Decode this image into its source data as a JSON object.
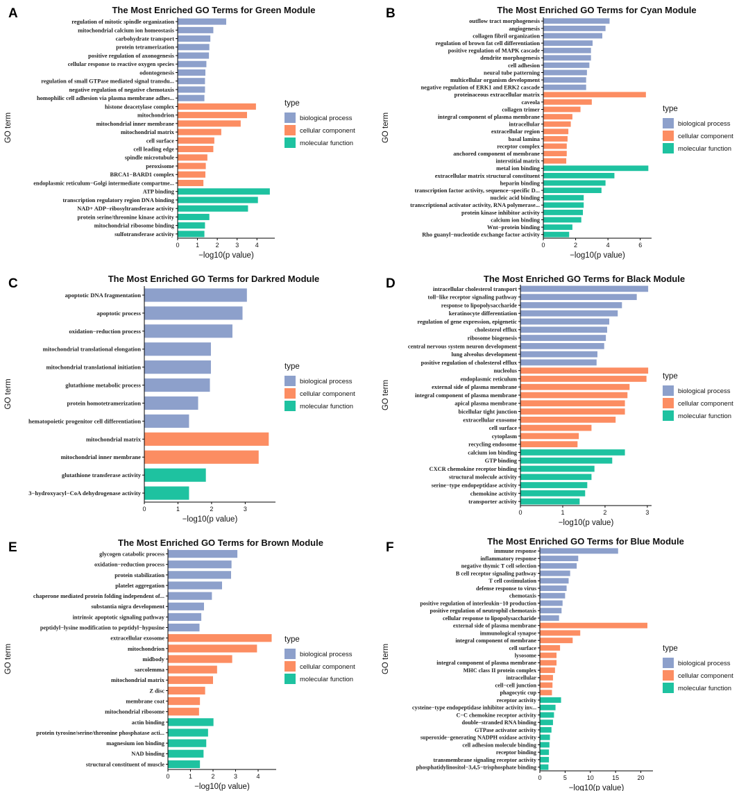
{
  "chart_data": [
    {
      "panel": "A",
      "type": "bar",
      "orientation": "horizontal",
      "title": "The Most Enriched GO Terms for Green Module",
      "xlabel": "−log10(p value)",
      "ylabel": "GO term",
      "xlim": [
        0,
        4.9
      ],
      "xticks": [
        "0",
        "1",
        "2",
        "3",
        "4"
      ],
      "legend_title": "type",
      "categories": [
        "regulation of mitotic spindle organization",
        "mitochondrial calcium ion homeostasis",
        "carbohydrate transport",
        "protein tetramerization",
        "positive regulation of axonogenesis",
        "cellular response to reactive oxygen species",
        "odontogenesis",
        "regulation of small GTPase mediated signal transdu...",
        "negative regulation of negative chemotaxis",
        "homophilic cell adhesion via plasma membrane adhes...",
        "histone deacetylase complex",
        "mitochondrion",
        "mitochondrial inner membrane",
        "mitochondrial matrix",
        "cell surface",
        "cell leading edge",
        "spindle microtubule",
        "peroxisome",
        "BRCA1−BARD1 complex",
        "endoplasmic reticulum−Golgi intermediate compartme...",
        "ATP binding",
        "transcription regulatory region DNA binding",
        "NAD+ ADP−ribosyltransferase activity",
        "protein serine/threonine kinase activity",
        "mitochondrial ribosome binding",
        "sulfotransferase activity"
      ],
      "values": [
        2.45,
        1.8,
        1.65,
        1.6,
        1.58,
        1.45,
        1.4,
        1.38,
        1.38,
        1.35,
        3.95,
        3.5,
        3.18,
        2.2,
        1.85,
        1.8,
        1.5,
        1.42,
        1.4,
        1.3,
        4.65,
        4.05,
        3.55,
        1.6,
        1.38,
        1.35
      ],
      "types": [
        "biological process",
        "biological process",
        "biological process",
        "biological process",
        "biological process",
        "biological process",
        "biological process",
        "biological process",
        "biological process",
        "biological process",
        "cellular component",
        "cellular component",
        "cellular component",
        "cellular component",
        "cellular component",
        "cellular component",
        "cellular component",
        "cellular component",
        "cellular component",
        "cellular component",
        "molecular function",
        "molecular function",
        "molecular function",
        "molecular function",
        "molecular function",
        "molecular function"
      ]
    },
    {
      "panel": "B",
      "type": "bar",
      "orientation": "horizontal",
      "title": "The Most Enriched GO Terms for Cyan Module",
      "xlabel": "−log10(p value)",
      "ylabel": "GO term",
      "xlim": [
        0,
        6.7
      ],
      "xticks": [
        "0",
        "2",
        "4",
        "6"
      ],
      "legend_title": "type",
      "categories": [
        "outflow tract morphogenesis",
        "angiogenesis",
        "collagen fibril organization",
        "regulation of brown fat cell differentiation",
        "positive regulation of MAPK cascade",
        "dendrite morphogenesis",
        "cell adhesion",
        "neural tube patterning",
        "multicellular organism development",
        "negative regulation of ERK1 and ERK2 cascade",
        "proteinaceous extracellular matrix",
        "caveola",
        "collagen trimer",
        "integral component of plasma membrane",
        "intracellular",
        "extracellular region",
        "basal lamina",
        "receptor complex",
        "anchored component of membrane",
        "interstitial matrix",
        "metal ion binding",
        "extracellular matrix structural constituent",
        "heparin binding",
        "transcription factor activity, sequence−specific D...",
        "nucleic acid binding",
        "transcriptional activator activity, RNA polymerase...",
        "protein kinase inhibitor activity",
        "calcium ion binding",
        "Wnt−protein binding",
        "Rho guanyl−nucleotide exchange factor activity"
      ],
      "values": [
        4.1,
        3.85,
        3.65,
        3.05,
        2.95,
        2.95,
        2.85,
        2.7,
        2.65,
        2.65,
        6.35,
        3.0,
        2.3,
        1.8,
        1.7,
        1.55,
        1.5,
        1.45,
        1.45,
        1.42,
        6.5,
        4.4,
        3.85,
        3.6,
        2.5,
        2.5,
        2.45,
        2.35,
        1.8,
        1.6
      ],
      "types": [
        "biological process",
        "biological process",
        "biological process",
        "biological process",
        "biological process",
        "biological process",
        "biological process",
        "biological process",
        "biological process",
        "biological process",
        "cellular component",
        "cellular component",
        "cellular component",
        "cellular component",
        "cellular component",
        "cellular component",
        "cellular component",
        "cellular component",
        "cellular component",
        "cellular component",
        "molecular function",
        "molecular function",
        "molecular function",
        "molecular function",
        "molecular function",
        "molecular function",
        "molecular function",
        "molecular function",
        "molecular function",
        "molecular function"
      ]
    },
    {
      "panel": "C",
      "type": "bar",
      "orientation": "horizontal",
      "title": "The Most Enriched GO Terms for Darkred Module",
      "xlabel": "−log10(p value)",
      "ylabel": "GO term",
      "xlim": [
        0,
        3.9
      ],
      "xticks": [
        "0",
        "1",
        "2",
        "3"
      ],
      "legend_title": "type",
      "categories": [
        "apoptotic DNA fragmentation",
        "apoptotic process",
        "oxidation−reduction process",
        "mitochondrial translational elongation",
        "mitochondrial translational initiation",
        "glutathione metabolic process",
        "protein homotetramerization",
        "hematopoietic progenitor cell differentiation",
        "mitochondrial matrix",
        "mitochondrial inner membrane",
        "glutathione transferase activity",
        "3−hydroxyacyl−CoA dehydrogenase activity"
      ],
      "values": [
        3.05,
        2.92,
        2.62,
        1.98,
        1.98,
        1.95,
        1.6,
        1.33,
        3.7,
        3.4,
        1.83,
        1.33
      ],
      "types": [
        "biological process",
        "biological process",
        "biological process",
        "biological process",
        "biological process",
        "biological process",
        "biological process",
        "biological process",
        "cellular component",
        "cellular component",
        "molecular function",
        "molecular function"
      ]
    },
    {
      "panel": "D",
      "type": "bar",
      "orientation": "horizontal",
      "title": "The Most Enriched GO Terms for Black Module",
      "xlabel": "−log10(p value)",
      "ylabel": "GO term",
      "xlim": [
        0,
        3.1
      ],
      "xticks": [
        "0",
        "1",
        "2",
        "3"
      ],
      "legend_title": "type",
      "categories": [
        "intracellular cholesterol transport",
        "toll−like receptor signaling pathway",
        "response to lipopolysaccharide",
        "keratinocyte differentiation",
        "regulation of gene expression, epigenetic",
        "cholesterol efflux",
        "ribosome biogenesis",
        "central nervous system neuron development",
        "lung alveolus development",
        "positive regulation of cholesterol efflux",
        "nucleolus",
        "endoplasmic reticulum",
        "external side of plasma membrane",
        "integral component of plasma membrane",
        "apical plasma membrane",
        "bicellular tight junction",
        "extracellular exosome",
        "cell surface",
        "cytoplasm",
        "recycling endosome",
        "calcium ion binding",
        "GTP binding",
        "CXCR chemokine receptor binding",
        "structural molecule activity",
        "serine−type endopeptidase activity",
        "chemokine activity",
        "transporter activity"
      ],
      "values": [
        3.02,
        2.75,
        2.4,
        2.3,
        2.1,
        2.05,
        2.02,
        1.98,
        1.82,
        1.8,
        3.02,
        2.98,
        2.58,
        2.53,
        2.47,
        2.47,
        2.25,
        1.68,
        1.38,
        1.35,
        2.47,
        2.17,
        1.75,
        1.68,
        1.58,
        1.53,
        1.4
      ],
      "types": [
        "biological process",
        "biological process",
        "biological process",
        "biological process",
        "biological process",
        "biological process",
        "biological process",
        "biological process",
        "biological process",
        "biological process",
        "cellular component",
        "cellular component",
        "cellular component",
        "cellular component",
        "cellular component",
        "cellular component",
        "cellular component",
        "cellular component",
        "cellular component",
        "cellular component",
        "molecular function",
        "molecular function",
        "molecular function",
        "molecular function",
        "molecular function",
        "molecular function",
        "molecular function"
      ]
    },
    {
      "panel": "E",
      "type": "bar",
      "orientation": "horizontal",
      "title": "The Most Enriched GO Terms for Brown Module",
      "xlabel": "−log10(p value)",
      "ylabel": "GO term",
      "xlim": [
        0,
        4.8
      ],
      "xticks": [
        "0",
        "1",
        "2",
        "3",
        "4"
      ],
      "legend_title": "type",
      "categories": [
        "glycogen catabolic process",
        "oxidation−reduction process",
        "protein stabilization",
        "platelet aggregation",
        "chaperone mediated protein folding independent of...",
        "substantia nigra development",
        "intrinsic apoptotic signaling pathway",
        "peptidyl−lysine modification to peptidyl−hypusine",
        "extracellular exosome",
        "mitochondrion",
        "midbody",
        "sarcolemma",
        "mitochondrial matrix",
        "Z disc",
        "membrane coat",
        "mitochondrial ribosome",
        "actin binding",
        "protein tyrosine/serine/threonine phosphatase acti...",
        "magnesium ion binding",
        "NAD binding",
        "structural constituent of muscle"
      ],
      "values": [
        3.08,
        2.82,
        2.8,
        2.4,
        1.95,
        1.6,
        1.48,
        1.4,
        4.6,
        3.95,
        2.85,
        2.18,
        2.0,
        1.65,
        1.42,
        1.38,
        2.02,
        1.78,
        1.7,
        1.58,
        1.42
      ],
      "types": [
        "biological process",
        "biological process",
        "biological process",
        "biological process",
        "biological process",
        "biological process",
        "biological process",
        "biological process",
        "cellular component",
        "cellular component",
        "cellular component",
        "cellular component",
        "cellular component",
        "cellular component",
        "cellular component",
        "cellular component",
        "molecular function",
        "molecular function",
        "molecular function",
        "molecular function",
        "molecular function"
      ]
    },
    {
      "panel": "F",
      "type": "bar",
      "orientation": "horizontal",
      "title": "The Most Enriched GO Terms for Blue Module",
      "xlabel": "−log10(p value)",
      "ylabel": "GO term",
      "xlim": [
        0,
        22.4
      ],
      "xticks": [
        "0",
        "5",
        "10",
        "15",
        "20"
      ],
      "legend_title": "type",
      "categories": [
        "immune response",
        "inflammatory response",
        "negative thymic T cell selection",
        "B cell receptor signaling pathway",
        "T cell costimulation",
        "defense response to virus",
        "chemotaxis",
        "positive regulation of interleukin−10 production",
        "positive regulation of neutrophil chemotaxis",
        "cellular response to lipopolysaccharide",
        "external side of plasma membrane",
        "immunological synapse",
        "integral component of membrane",
        "cell surface",
        "lysosome",
        "integral component of plasma membrane",
        "MHC class II protein complex",
        "intracellular",
        "cell−cell junction",
        "phagocytic cup",
        "receptor activity",
        "cysteine−type endopeptidase inhibitor activity inv...",
        "C−C chemokine receptor activity",
        "double−stranded RNA binding",
        "GTPase activator activity",
        "superoxide−generating NADPH oxidase activity",
        "cell adhesion molecule binding",
        "receptor binding",
        "transmembrane signaling receptor activity",
        "phosphatidylinositol−3,4,5−trisphosphate binding"
      ],
      "values": [
        15.5,
        7.6,
        7.3,
        6.0,
        5.7,
        5.3,
        5.0,
        4.5,
        4.3,
        3.8,
        21.3,
        8.0,
        6.5,
        4.0,
        3.3,
        3.3,
        3.0,
        2.6,
        2.5,
        2.4,
        4.2,
        3.1,
        2.8,
        2.6,
        2.3,
        2.0,
        1.9,
        1.8,
        1.8,
        1.7
      ],
      "types": [
        "biological process",
        "biological process",
        "biological process",
        "biological process",
        "biological process",
        "biological process",
        "biological process",
        "biological process",
        "biological process",
        "biological process",
        "cellular component",
        "cellular component",
        "cellular component",
        "cellular component",
        "cellular component",
        "cellular component",
        "cellular component",
        "cellular component",
        "cellular component",
        "cellular component",
        "molecular function",
        "molecular function",
        "molecular function",
        "molecular function",
        "molecular function",
        "molecular function",
        "molecular function",
        "molecular function",
        "molecular function",
        "molecular function"
      ]
    }
  ],
  "legend": {
    "title": "type",
    "items": [
      {
        "label": "biological process",
        "color": "#8DA0CB"
      },
      {
        "label": "cellular component",
        "color": "#FC8D62"
      },
      {
        "label": "molecular function",
        "color": "#1EC2A0"
      }
    ]
  }
}
